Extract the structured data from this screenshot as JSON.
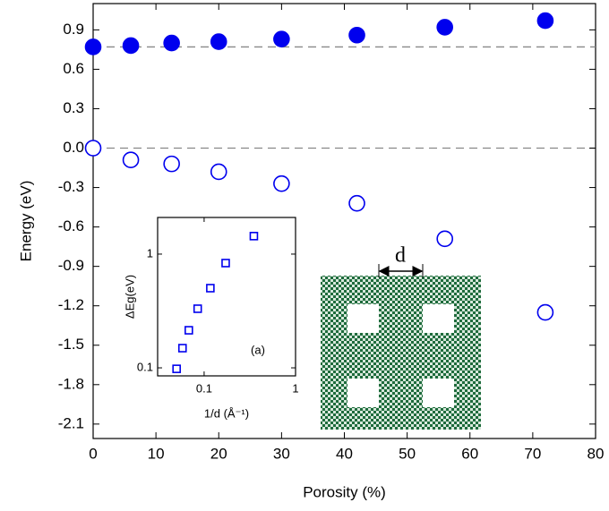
{
  "chart_data": [
    {
      "type": "scatter",
      "xlabel": "Porosity (%)",
      "ylabel": "Energy (eV)",
      "xlim": [
        0,
        80
      ],
      "xticks": [
        0,
        10,
        20,
        30,
        40,
        50,
        60,
        70,
        80
      ],
      "ylim": [
        -2.21,
        1.1
      ],
      "yticks": [
        0.9,
        0.6,
        0.3,
        {
          "value": 0,
          "label": "0.0"
        },
        -0.3,
        -0.6,
        -0.9,
        -1.2,
        -1.5,
        -1.8,
        -2.1
      ],
      "reference_lines": [
        0.77,
        0
      ],
      "series": [
        {
          "color": "#0000ee",
          "filled": true,
          "x": [
            0,
            6,
            12.5,
            20,
            30,
            42,
            56,
            72
          ],
          "values": [
            0.77,
            0.78,
            0.8,
            0.81,
            0.83,
            0.86,
            0.92,
            0.97
          ]
        },
        {
          "color": "#0000ee",
          "filled": false,
          "x": [
            0,
            6,
            12.5,
            20,
            30,
            42,
            56,
            72
          ],
          "values": [
            0,
            -0.09,
            -0.12,
            -0.18,
            -0.27,
            -0.42,
            -0.69,
            -1.25
          ]
        }
      ]
    },
    {
      "type": "scatter",
      "log_x": true,
      "log_y": true,
      "xlabel": "1/d (Å⁻¹)",
      "ylabel": "ΔEg(eV)",
      "annotation": "(a)",
      "structure_label": "d",
      "xlim": [
        0.031,
        1
      ],
      "xticks": [
        0.1,
        1
      ],
      "ylim": [
        0.085,
        2.1
      ],
      "yticks": [
        0.1,
        1
      ],
      "series": [
        {
          "color": "#0000ee",
          "marker": "square",
          "filled": false,
          "x": [
            0.05,
            0.058,
            0.068,
            0.085,
            0.117,
            0.172,
            0.35
          ],
          "values": [
            0.098,
            0.149,
            0.214,
            0.331,
            0.502,
            0.834,
            1.44
          ]
        }
      ]
    }
  ]
}
